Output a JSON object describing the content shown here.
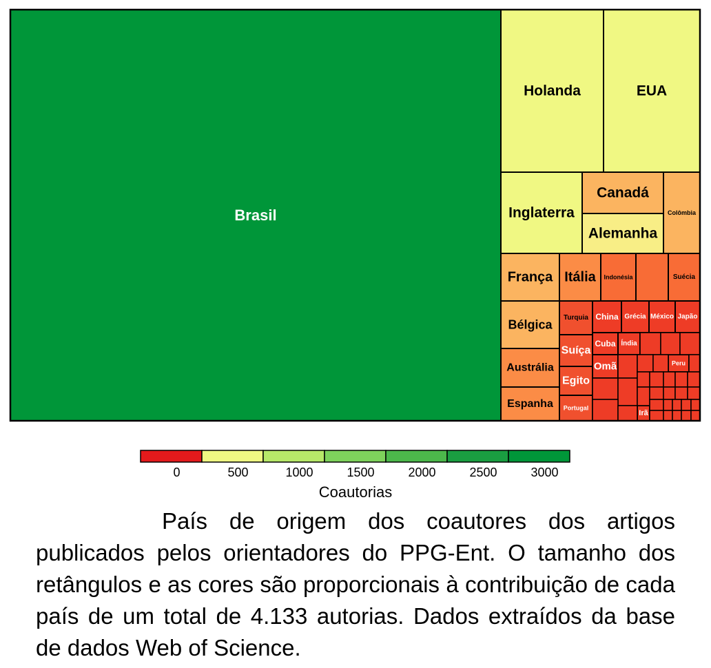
{
  "chart_data": {
    "type": "treemap",
    "cells": [
      {
        "label": "Brasil",
        "value": 2450,
        "color": "#009639"
      },
      {
        "label": "Holanda",
        "value": 165,
        "color": "#f0f883"
      },
      {
        "label": "EUA",
        "value": 165,
        "color": "#f0f883"
      },
      {
        "label": "Inglaterra",
        "value": 100,
        "color": "#f0f883"
      },
      {
        "label": "Canadá",
        "value": 50,
        "color": "#fbb460"
      },
      {
        "label": "Alemanha",
        "value": 50,
        "color": "#f8ee86"
      },
      {
        "label": "Colômbia",
        "value": 41,
        "color": "#fbb460"
      },
      {
        "label": "França",
        "value": 39,
        "color": "#fbb460"
      },
      {
        "label": "Itália",
        "value": 30,
        "color": "#fb8c46"
      },
      {
        "label": "Indonésia",
        "value": 24,
        "color": "#f86c36"
      },
      {
        "label": "",
        "value": 21,
        "color": "#f86c36"
      },
      {
        "label": "Suécia",
        "value": 21,
        "color": "#f86c36"
      },
      {
        "label": "Bélgica",
        "value": 35,
        "color": "#fbb460"
      },
      {
        "label": "Austrália",
        "value": 32,
        "color": "#fb8c46"
      },
      {
        "label": "Espanha",
        "value": 23,
        "color": "#fb8c46"
      },
      {
        "label": "Turquia",
        "value": 14,
        "color": "#f0502e"
      },
      {
        "label": "Suíça",
        "value": 14,
        "color": "#f0502e"
      },
      {
        "label": "Egito",
        "value": 13,
        "color": "#f0502e"
      },
      {
        "label": "Portugal",
        "value": 13,
        "color": "#f0502e"
      },
      {
        "label": "China",
        "value": 8,
        "color": "#ee3c26"
      },
      {
        "label": "Grécia",
        "value": 7,
        "color": "#ee3c26"
      },
      {
        "label": "México",
        "value": 7,
        "color": "#ee3c26"
      },
      {
        "label": "Japão",
        "value": 6,
        "color": "#ee3c26"
      },
      {
        "label": "Cuba",
        "value": 6,
        "color": "#ee3c26"
      },
      {
        "label": "Índia",
        "value": 5,
        "color": "#ee3c26"
      },
      {
        "label": "Omã",
        "value": 6,
        "color": "#ee3c26"
      },
      {
        "label": "Peru",
        "value": 4,
        "color": "#ee3c26"
      },
      {
        "label": "Irã",
        "value": 2,
        "color": "#ee3c26"
      }
    ],
    "legend": {
      "title": "Coautorias",
      "ticks": [
        "0",
        "500",
        "1000",
        "1500",
        "2000",
        "2500",
        "3000"
      ],
      "swatches": [
        "#e41a1c",
        "#f0f883",
        "#b7e869",
        "#7ed25c",
        "#4cb84b",
        "#1a9e41",
        "#009639"
      ]
    }
  },
  "caption": {
    "text": "País de origem dos coautores dos artigos publicados pelos orientadores do PPG-Ent. O tamanho dos retângulos e as cores são proporcionais à contribuição de cada país de um total de 4.133 autorias. Dados extraídos da base de dados Web of Science."
  }
}
